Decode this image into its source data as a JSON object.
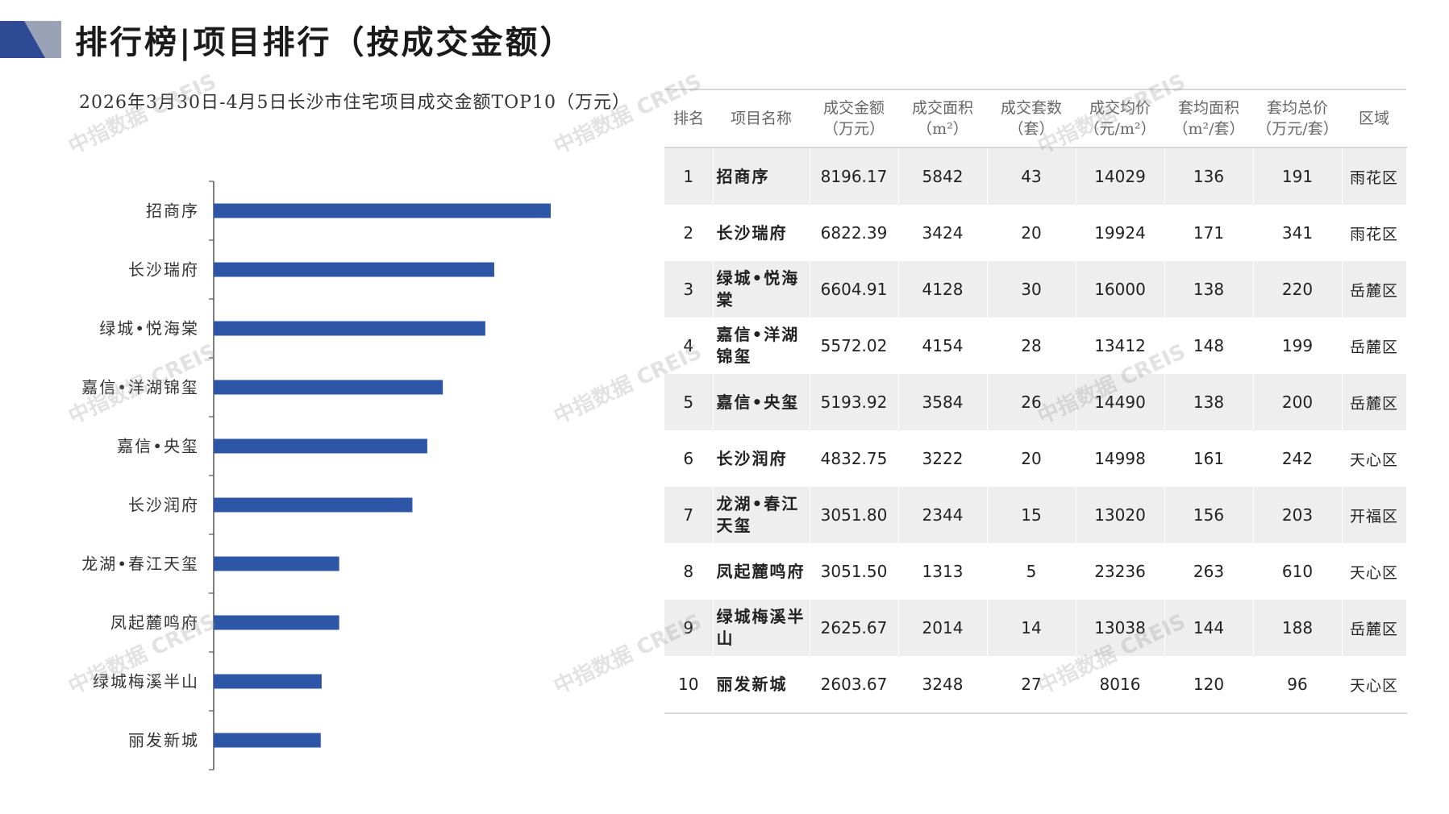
{
  "header": {
    "title": "排行榜|项目排行（按成交金额）"
  },
  "colors": {
    "bar": "#2e56a6",
    "logo_dark": "#2e4a94",
    "logo_mid": "#9aa3b5",
    "logo_light": "#d3d6dd"
  },
  "chart_title": "2026年3月30日-4月5日长沙市住宅项目成交金额TOP10（万元）",
  "chart_data": {
    "type": "bar",
    "orientation": "horizontal",
    "title": "2026年3月30日-4月5日长沙市住宅项目成交金额TOP10（万元）",
    "categories": [
      "招商序",
      "长沙瑞府",
      "绿城•悦海棠",
      "嘉信•洋湖锦玺",
      "嘉信•央玺",
      "长沙润府",
      "龙湖•春江天玺",
      "凤起麓鸣府",
      "绿城梅溪半山",
      "丽发新城"
    ],
    "values": [
      8196.17,
      6822.39,
      6604.91,
      5572.02,
      5193.92,
      4832.75,
      3051.8,
      3051.5,
      2625.67,
      2603.67
    ],
    "xlim": [
      0,
      10000
    ],
    "grid": false,
    "legend": "none"
  },
  "table": {
    "headers": [
      [
        "排名"
      ],
      [
        "项目名称"
      ],
      [
        "成交金额",
        "（万元）"
      ],
      [
        "成交面积",
        "（m²）"
      ],
      [
        "成交套数",
        "（套）"
      ],
      [
        "成交均价",
        "（元/m²）"
      ],
      [
        "套均面积",
        "（m²/套）"
      ],
      [
        "套均总价",
        "（万元/套）"
      ],
      [
        "区域"
      ]
    ],
    "rows": [
      [
        "1",
        "招商序",
        "8196.17",
        "5842",
        "43",
        "14029",
        "136",
        "191",
        "雨花区"
      ],
      [
        "2",
        "长沙瑞府",
        "6822.39",
        "3424",
        "20",
        "19924",
        "171",
        "341",
        "雨花区"
      ],
      [
        "3",
        "绿城•悦海棠",
        "6604.91",
        "4128",
        "30",
        "16000",
        "138",
        "220",
        "岳麓区"
      ],
      [
        "4",
        "嘉信•洋湖锦玺",
        "5572.02",
        "4154",
        "28",
        "13412",
        "148",
        "199",
        "岳麓区"
      ],
      [
        "5",
        "嘉信•央玺",
        "5193.92",
        "3584",
        "26",
        "14490",
        "138",
        "200",
        "岳麓区"
      ],
      [
        "6",
        "长沙润府",
        "4832.75",
        "3222",
        "20",
        "14998",
        "161",
        "242",
        "天心区"
      ],
      [
        "7",
        "龙湖•春江天玺",
        "3051.80",
        "2344",
        "15",
        "13020",
        "156",
        "203",
        "开福区"
      ],
      [
        "8",
        "凤起麓鸣府",
        "3051.50",
        "1313",
        "5",
        "23236",
        "263",
        "610",
        "天心区"
      ],
      [
        "9",
        "绿城梅溪半山",
        "2625.67",
        "2014",
        "14",
        "13038",
        "144",
        "188",
        "岳麓区"
      ],
      [
        "10",
        "丽发新城",
        "2603.67",
        "3248",
        "27",
        "8016",
        "120",
        "96",
        "天心区"
      ]
    ]
  },
  "watermark": "中指数据 CREIS"
}
